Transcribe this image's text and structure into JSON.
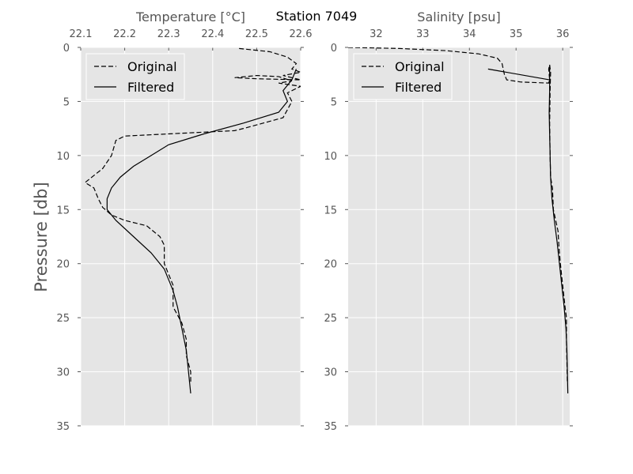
{
  "suptitle": "Station 7049",
  "ylabel": "Pressure [db]",
  "colors": {
    "panel_bg": "#e5e5e5",
    "grid": "#ffffff",
    "line": "#000000",
    "legend_bg": "#e5e5e5"
  },
  "chart_data": [
    {
      "type": "line",
      "title": "",
      "xlabel": "Temperature [°C]",
      "ylabel": "Pressure [db]",
      "x_axis_position": "top",
      "y_inverted": true,
      "grid": true,
      "legend_position": "upper-left",
      "xlim": [
        22.1,
        22.6
      ],
      "ylim": [
        35,
        0
      ],
      "xticks": [
        "22.1",
        "22.2",
        "22.3",
        "22.4",
        "22.5",
        "22.6"
      ],
      "yticks": [
        "0",
        "5",
        "10",
        "15",
        "20",
        "25",
        "30",
        "35"
      ],
      "series": [
        {
          "name": "Original",
          "style": "dashed",
          "points": [
            [
              22.46,
              0.1
            ],
            [
              22.53,
              0.4
            ],
            [
              22.57,
              0.9
            ],
            [
              22.59,
              1.5
            ],
            [
              22.58,
              2.0
            ],
            [
              22.6,
              2.3
            ],
            [
              22.56,
              2.6
            ],
            [
              22.6,
              3.0
            ],
            [
              22.5,
              2.9
            ],
            [
              22.45,
              2.8
            ],
            [
              22.5,
              2.6
            ],
            [
              22.55,
              2.7
            ],
            [
              22.58,
              3.1
            ],
            [
              22.55,
              3.3
            ],
            [
              22.6,
              3.6
            ],
            [
              22.57,
              4.2
            ],
            [
              22.58,
              5.0
            ],
            [
              22.56,
              6.5
            ],
            [
              22.47,
              7.5
            ],
            [
              22.45,
              7.7
            ],
            [
              22.2,
              8.2
            ],
            [
              22.18,
              8.6
            ],
            [
              22.17,
              10.0
            ],
            [
              22.15,
              11.2
            ],
            [
              22.11,
              12.5
            ],
            [
              22.13,
              13.0
            ],
            [
              22.14,
              14.0
            ],
            [
              22.15,
              14.8
            ],
            [
              22.17,
              15.5
            ],
            [
              22.2,
              16.0
            ],
            [
              22.25,
              16.5
            ],
            [
              22.28,
              17.5
            ],
            [
              22.29,
              18.3
            ],
            [
              22.29,
              20.0
            ],
            [
              22.31,
              22.0
            ],
            [
              22.31,
              24.0
            ],
            [
              22.33,
              25.5
            ],
            [
              22.34,
              27.0
            ],
            [
              22.34,
              28.5
            ],
            [
              22.35,
              30.0
            ],
            [
              22.35,
              31.0
            ]
          ]
        },
        {
          "name": "Filtered",
          "style": "solid",
          "points": [
            [
              22.59,
              2.0
            ],
            [
              22.58,
              3.0
            ],
            [
              22.56,
              4.0
            ],
            [
              22.57,
              5.0
            ],
            [
              22.55,
              6.0
            ],
            [
              22.47,
              7.0
            ],
            [
              22.38,
              8.0
            ],
            [
              22.3,
              9.0
            ],
            [
              22.26,
              10.0
            ],
            [
              22.22,
              11.0
            ],
            [
              22.19,
              12.0
            ],
            [
              22.17,
              13.0
            ],
            [
              22.16,
              14.0
            ],
            [
              22.16,
              15.0
            ],
            [
              22.18,
              16.0
            ],
            [
              22.22,
              17.5
            ],
            [
              22.26,
              19.0
            ],
            [
              22.29,
              20.5
            ],
            [
              22.31,
              22.5
            ],
            [
              22.32,
              24.0
            ],
            [
              22.33,
              26.0
            ],
            [
              22.34,
              28.0
            ],
            [
              22.345,
              30.0
            ],
            [
              22.35,
              32.0
            ]
          ]
        }
      ]
    },
    {
      "type": "line",
      "title": "",
      "xlabel": "Salinity [psu]",
      "ylabel": "",
      "x_axis_position": "top",
      "y_inverted": true,
      "grid": true,
      "legend_position": "upper-left",
      "xlim": [
        31.4,
        36.15
      ],
      "ylim": [
        35,
        0
      ],
      "xticks": [
        "32",
        "33",
        "34",
        "35",
        "36"
      ],
      "yticks": [
        "0",
        "5",
        "10",
        "15",
        "20",
        "25",
        "30",
        "35"
      ],
      "series": [
        {
          "name": "Original",
          "style": "dashed",
          "points": [
            [
              31.4,
              0.0
            ],
            [
              32.5,
              0.1
            ],
            [
              33.5,
              0.3
            ],
            [
              34.2,
              0.6
            ],
            [
              34.6,
              1.0
            ],
            [
              34.7,
              1.5
            ],
            [
              34.75,
              2.5
            ],
            [
              34.8,
              3.0
            ],
            [
              35.1,
              3.2
            ],
            [
              35.7,
              3.3
            ],
            [
              35.72,
              3.0
            ],
            [
              35.7,
              2.0
            ],
            [
              35.72,
              1.6
            ],
            [
              35.74,
              2.3
            ],
            [
              35.73,
              4.0
            ],
            [
              35.72,
              7.0
            ],
            [
              35.73,
              10.0
            ],
            [
              35.74,
              12.0
            ],
            [
              35.78,
              13.0
            ],
            [
              35.8,
              15.0
            ],
            [
              35.85,
              16.0
            ],
            [
              35.9,
              17.0
            ],
            [
              35.92,
              18.5
            ],
            [
              35.95,
              20.0
            ],
            [
              36.0,
              22.0
            ],
            [
              36.05,
              24.0
            ],
            [
              36.08,
              25.0
            ],
            [
              36.08,
              27.0
            ],
            [
              36.09,
              29.0
            ],
            [
              36.1,
              31.0
            ]
          ]
        },
        {
          "name": "Filtered",
          "style": "solid",
          "points": [
            [
              34.4,
              2.0
            ],
            [
              35.72,
              3.0
            ],
            [
              35.72,
              1.7
            ],
            [
              35.72,
              4.0
            ],
            [
              35.71,
              6.0
            ],
            [
              35.72,
              8.0
            ],
            [
              35.73,
              10.0
            ],
            [
              35.74,
              12.0
            ],
            [
              35.77,
              14.0
            ],
            [
              35.82,
              16.0
            ],
            [
              35.88,
              18.0
            ],
            [
              35.93,
              20.0
            ],
            [
              35.98,
              22.0
            ],
            [
              36.03,
              24.0
            ],
            [
              36.07,
              26.0
            ],
            [
              36.09,
              28.0
            ],
            [
              36.1,
              30.0
            ],
            [
              36.11,
              32.0
            ]
          ]
        }
      ]
    }
  ]
}
